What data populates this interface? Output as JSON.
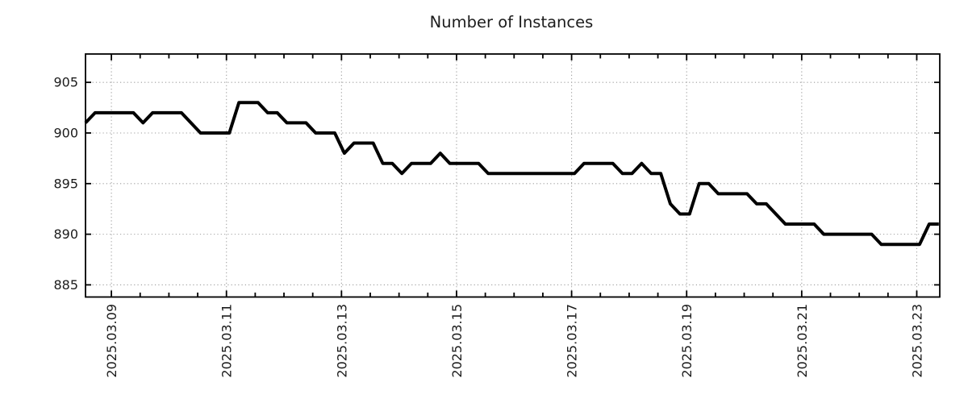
{
  "chart_data": {
    "type": "line",
    "title": "Number of Instances",
    "xlabel": "",
    "ylabel": "",
    "legend": "none",
    "grid": "dotted",
    "x_tick_labels": [
      "2025.03.09",
      "2025.03.11",
      "2025.03.13",
      "2025.03.15",
      "2025.03.17",
      "2025.03.19",
      "2025.03.21",
      "2025.03.23"
    ],
    "x_tick_interval_days": 2,
    "x_minor_tick_days": 0.5,
    "y_ticks": [
      885,
      890,
      895,
      900,
      905
    ],
    "ylim": [
      883.8,
      907.8
    ],
    "xlim_days": [
      -0.45,
      14.4
    ],
    "series": [
      {
        "name": "instances",
        "sample_interval_hours": 4,
        "start_offset_days": -0.45,
        "values": [
          901,
          902,
          902,
          902,
          902,
          902,
          901,
          902,
          902,
          902,
          902,
          901,
          900,
          900,
          900,
          900,
          903,
          903,
          903,
          902,
          902,
          901,
          901,
          901,
          900,
          900,
          900,
          898,
          899,
          899,
          899,
          897,
          897,
          896,
          897,
          897,
          897,
          898,
          897,
          897,
          897,
          897,
          896,
          896,
          896,
          896,
          896,
          896,
          896,
          896,
          896,
          896,
          897,
          897,
          897,
          897,
          896,
          896,
          897,
          896,
          896,
          893,
          892,
          892,
          895,
          895,
          894,
          894,
          894,
          894,
          893,
          893,
          892,
          891,
          891,
          891,
          891,
          890,
          890,
          890,
          890,
          890,
          890,
          889,
          889,
          889,
          889,
          889,
          891,
          891
        ]
      }
    ],
    "colors": {
      "line": "#000000",
      "grid": "#9e9e9e",
      "border": "#000000",
      "text": "#1c1c1c",
      "background": "#ffffff"
    }
  }
}
